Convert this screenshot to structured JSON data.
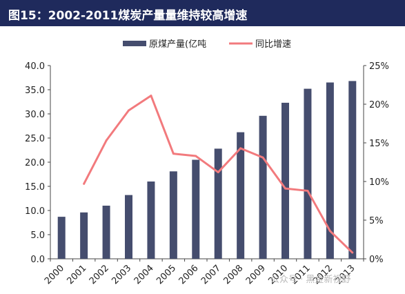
{
  "title": "图15：2002-2011煤炭产量量维持较高增速",
  "watermark": "公众号 · 黑金新视野",
  "colors": {
    "bar": "#454d6e",
    "line": "#f27a7d",
    "title_bg": "#1f2a5c"
  },
  "chart_data": {
    "type": "bar+line",
    "categories": [
      "2000",
      "2001",
      "2002",
      "2003",
      "2004",
      "2005",
      "2006",
      "2007",
      "2008",
      "2009",
      "2010",
      "2011",
      "2012",
      "2013"
    ],
    "series": [
      {
        "name": "原煤产量(亿吨",
        "type": "bar",
        "axis": "left",
        "values": [
          8.7,
          9.6,
          11.0,
          13.2,
          16.0,
          18.1,
          20.5,
          22.8,
          26.2,
          29.6,
          32.3,
          35.2,
          36.5,
          36.8
        ]
      },
      {
        "name": "同比增速",
        "type": "line",
        "axis": "right",
        "values": [
          null,
          9.7,
          15.3,
          19.2,
          21.1,
          13.6,
          13.3,
          11.2,
          14.3,
          13.1,
          9.1,
          8.8,
          3.6,
          0.8
        ]
      }
    ],
    "y_left": {
      "min": 0,
      "max": 40,
      "step": 5,
      "ticks": [
        "0.0",
        "5.0",
        "10.0",
        "15.0",
        "20.0",
        "25.0",
        "30.0",
        "35.0",
        "40.0"
      ]
    },
    "y_right": {
      "min": 0,
      "max": 25,
      "step": 5,
      "ticks": [
        "0%",
        "5%",
        "10%",
        "15%",
        "20%",
        "25%"
      ]
    },
    "legend_position": "top-center",
    "grid": false
  }
}
